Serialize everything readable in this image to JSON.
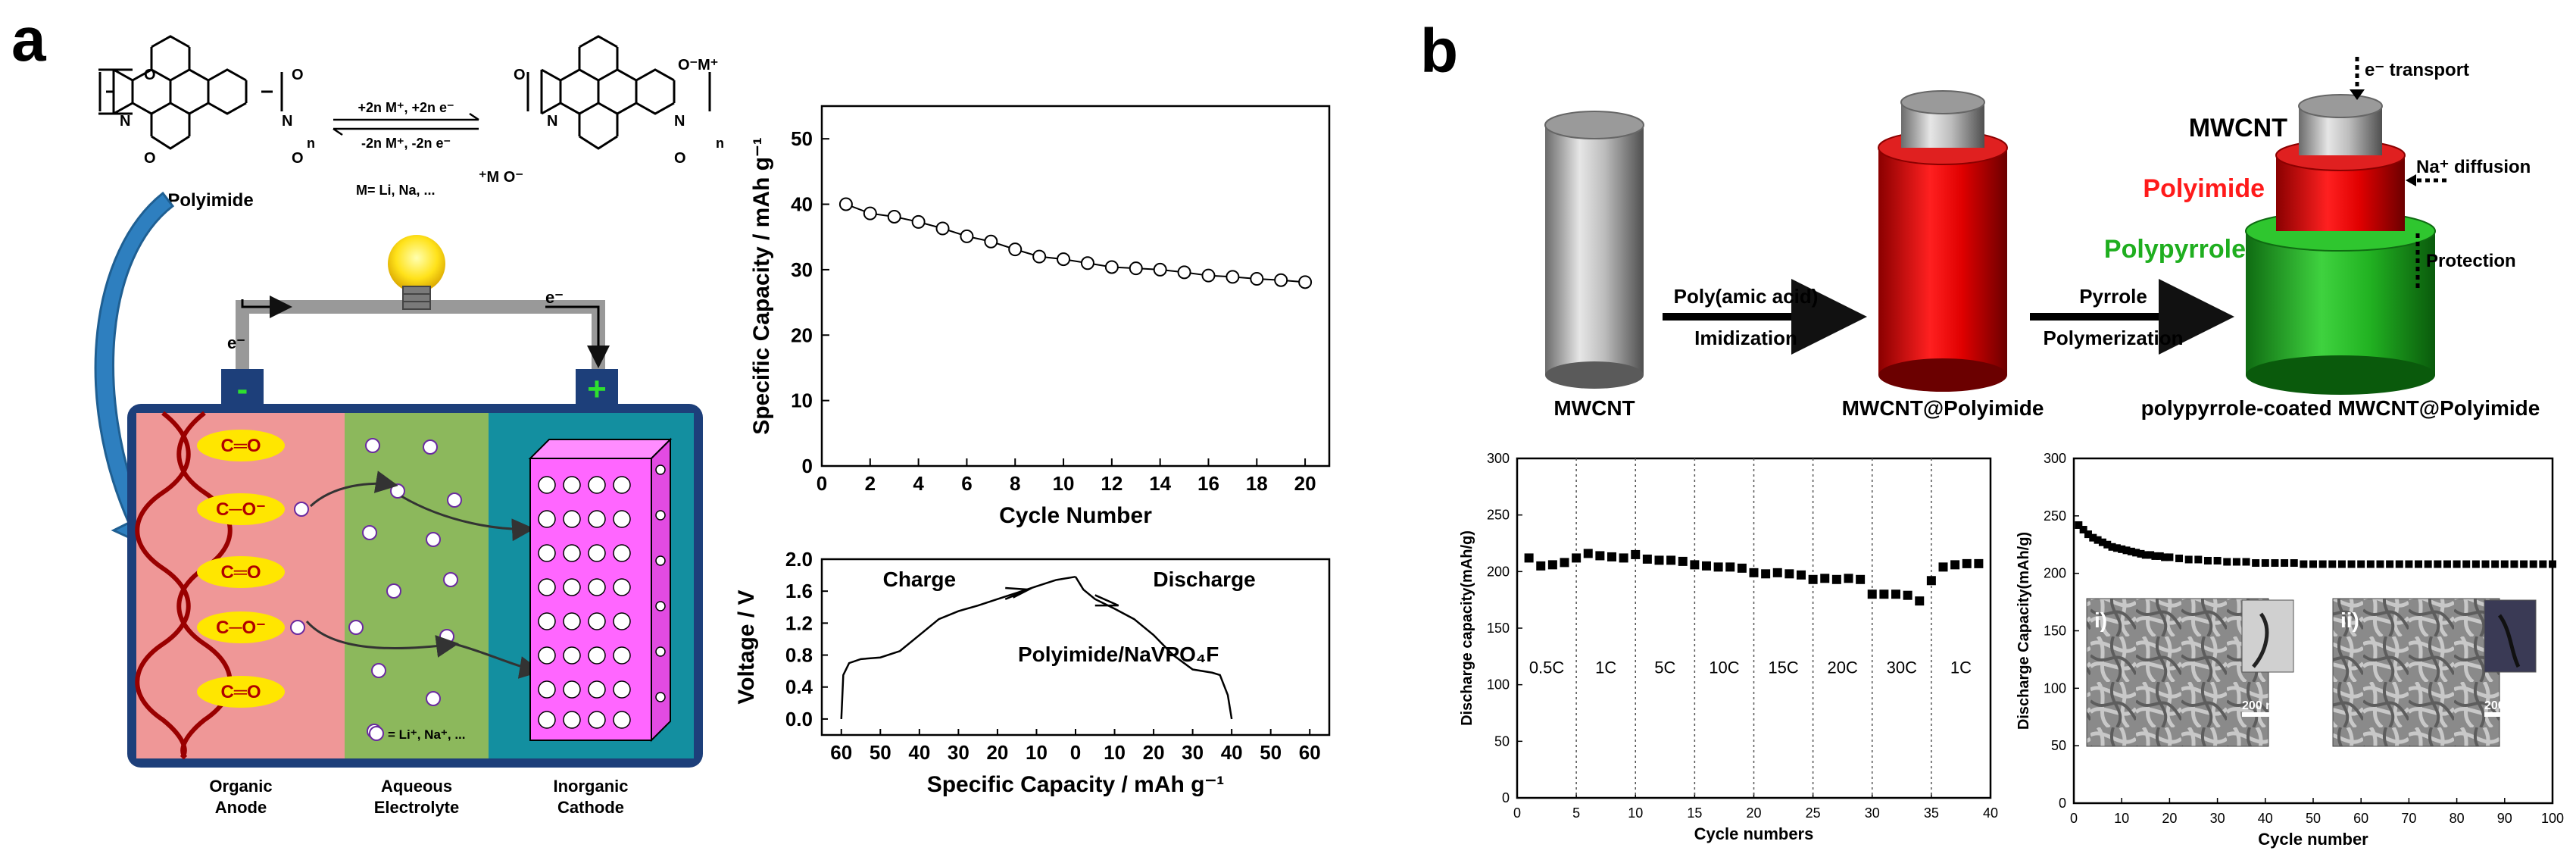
{
  "panel_a": {
    "label": "a",
    "chem": {
      "polyimide_label": "Polyimide",
      "forward": "+2n M⁺, +2n e⁻",
      "reverse": "-2n M⁺, -2n e⁻",
      "ions": "M= Li, Na, ...",
      "n1": "n",
      "n2": "n",
      "o_minus_m": "O⁻M⁺",
      "m_o_minus": "⁺M O⁻",
      "o": "O",
      "n_atom": "N"
    },
    "battery": {
      "minus": "-",
      "plus": "+",
      "electron_left": "e⁻",
      "electron_right": "e⁻",
      "groups": [
        "C═O",
        "C─O⁻",
        "C═O",
        "C─O⁻",
        "C═O"
      ],
      "legend": "= Li⁺, Na⁺, ...",
      "sections": [
        {
          "line1": "Organic",
          "line2": "Anode"
        },
        {
          "line1": "Aqueous",
          "line2": "Electrolyte"
        },
        {
          "line1": "Inorganic",
          "line2": "Cathode"
        }
      ]
    }
  },
  "panel_b": {
    "label": "b",
    "cylinders": [
      "MWCNT",
      "MWCNT@Polyimide",
      "polypyrrole-coated MWCNT@Polyimide"
    ],
    "arrow1": {
      "top": "Poly(amic acid)",
      "bottom": "Imidization"
    },
    "arrow2": {
      "top": "Pyrrole",
      "bottom": "Polymerization"
    },
    "layers": {
      "core": "MWCNT",
      "mid": "Polyimide",
      "outer": "Polypyrrole"
    },
    "callouts": {
      "electron": "e⁻ transport",
      "na": "Na⁺ diffusion",
      "protection": "Protection"
    },
    "sem": {
      "i": "i)",
      "ii": "ii)",
      "scale": "200 nm"
    }
  },
  "chart_data": [
    {
      "id": "cycle-capacity",
      "type": "line",
      "xlabel": "Cycle Number",
      "ylabel": "Specific Capacity / mAh g⁻¹",
      "xlim": [
        0,
        21
      ],
      "ylim": [
        0,
        55
      ],
      "xticks": [
        0,
        2,
        4,
        6,
        8,
        10,
        12,
        14,
        16,
        18,
        20
      ],
      "yticks": [
        0,
        10,
        20,
        30,
        40,
        50
      ],
      "x": [
        1,
        2,
        3,
        4,
        5,
        6,
        7,
        8,
        9,
        10,
        11,
        12,
        13,
        14,
        15,
        16,
        17,
        18,
        19,
        20
      ],
      "y": [
        40.0,
        38.6,
        38.1,
        37.3,
        36.3,
        35.1,
        34.3,
        33.1,
        32.0,
        31.6,
        31.0,
        30.4,
        30.2,
        30.0,
        29.6,
        29.1,
        28.9,
        28.6,
        28.4,
        28.1
      ]
    },
    {
      "id": "voltage-profile",
      "type": "line",
      "xlabel": "Specific Capacity / mAh g⁻¹",
      "ylabel": "Voltage / V",
      "xlim": [
        -65,
        65
      ],
      "ylim": [
        -0.2,
        2.0
      ],
      "xtick_labels": [
        "60",
        "50",
        "40",
        "30",
        "20",
        "10",
        "0",
        "10",
        "20",
        "30",
        "40",
        "50",
        "60"
      ],
      "yticks": [
        0.0,
        0.4,
        0.8,
        1.2,
        1.6,
        2.0
      ],
      "annotations": [
        "Charge",
        "Discharge",
        "Polyimide/NaVPO₄F"
      ],
      "series": [
        {
          "x": [
            -60,
            -59.5,
            -58,
            -55,
            -50,
            -45,
            -40,
            -35,
            -30,
            -25,
            -20,
            -15,
            -10,
            -5,
            0
          ],
          "y": [
            0.0,
            0.55,
            0.7,
            0.75,
            0.77,
            0.85,
            1.05,
            1.25,
            1.35,
            1.42,
            1.5,
            1.58,
            1.66,
            1.74,
            1.78
          ]
        },
        {
          "x": [
            0,
            2,
            5,
            10,
            15,
            20,
            25,
            30,
            35,
            37,
            39,
            40
          ],
          "y": [
            1.78,
            1.62,
            1.5,
            1.38,
            1.25,
            1.05,
            0.8,
            0.62,
            0.58,
            0.55,
            0.3,
            0.0
          ]
        }
      ]
    },
    {
      "id": "rate-capability",
      "type": "scatter",
      "xlabel": "Cycle numbers",
      "ylabel": "Discharge capacity(mAh/g)",
      "xlim": [
        0,
        40
      ],
      "ylim": [
        0,
        300
      ],
      "xticks": [
        0,
        5,
        10,
        15,
        20,
        25,
        30,
        35,
        40
      ],
      "yticks": [
        0,
        50,
        100,
        150,
        200,
        250,
        300
      ],
      "rate_labels": [
        "0.5C",
        "1C",
        "5C",
        "10C",
        "15C",
        "20C",
        "30C",
        "1C"
      ],
      "x": [
        1,
        2,
        3,
        4,
        5,
        6,
        7,
        8,
        9,
        10,
        11,
        12,
        13,
        14,
        15,
        16,
        17,
        18,
        19,
        20,
        21,
        22,
        23,
        24,
        25,
        26,
        27,
        28,
        29,
        30,
        31,
        32,
        33,
        34,
        35,
        36,
        37,
        38,
        39
      ],
      "y": [
        212,
        205,
        206,
        208,
        212,
        216,
        214,
        213,
        212,
        215,
        211,
        210,
        210,
        209,
        206,
        205,
        204,
        204,
        203,
        199,
        198,
        199,
        198,
        197,
        193,
        194,
        193,
        194,
        193,
        180,
        180,
        180,
        179,
        174,
        192,
        204,
        206,
        207,
        207
      ]
    },
    {
      "id": "long-cycling",
      "type": "scatter",
      "xlabel": "Cycle number",
      "ylabel": "Discharge Capacity(mAh/g)",
      "xlim": [
        0,
        100
      ],
      "ylim": [
        0,
        300
      ],
      "xticks": [
        0,
        10,
        20,
        30,
        40,
        50,
        60,
        70,
        80,
        90,
        100
      ],
      "yticks": [
        0,
        50,
        100,
        150,
        200,
        250,
        300
      ],
      "x": [
        1,
        2,
        3,
        4,
        5,
        6,
        7,
        8,
        9,
        10,
        11,
        12,
        13,
        14,
        15,
        16,
        17,
        18,
        19,
        20,
        22,
        24,
        26,
        28,
        30,
        32,
        34,
        36,
        38,
        40,
        42,
        44,
        46,
        48,
        50,
        52,
        54,
        56,
        58,
        60,
        62,
        64,
        66,
        68,
        70,
        72,
        74,
        76,
        78,
        80,
        82,
        84,
        86,
        88,
        90,
        92,
        94,
        96,
        98,
        100
      ],
      "y": [
        242,
        238,
        234,
        231,
        229,
        227,
        225,
        223,
        222,
        221,
        220,
        219,
        218,
        217,
        216,
        216,
        215,
        215,
        214,
        214,
        213,
        212,
        212,
        211,
        211,
        210,
        210,
        210,
        209,
        209,
        209,
        209,
        209,
        208,
        208,
        208,
        208,
        208,
        208,
        208,
        208,
        208,
        208,
        208,
        208,
        208,
        208,
        208,
        208,
        208,
        208,
        208,
        208,
        208,
        208,
        208,
        208,
        208,
        208,
        208
      ]
    }
  ]
}
